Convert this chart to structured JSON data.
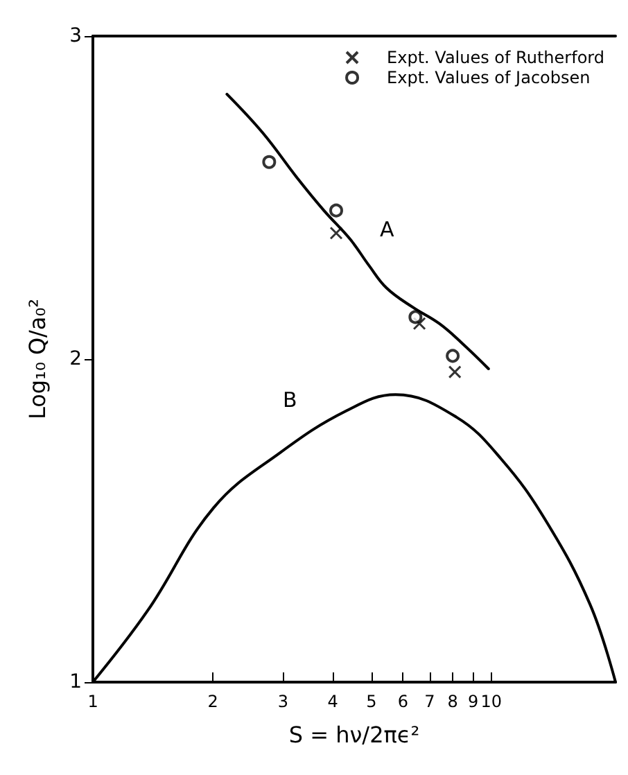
{
  "chart_data": {
    "type": "line",
    "xlabel": "S = hν/2πϵ²",
    "ylabel": "Log₁₀ Q/a₀²",
    "log": "x",
    "xlim": [
      1,
      20.5
    ],
    "ylim": [
      1,
      3
    ],
    "xticks": [
      1,
      2,
      3,
      4,
      5,
      6,
      7,
      8,
      9,
      10
    ],
    "yticks": [
      1,
      2,
      3
    ],
    "grid": false,
    "legend": "top right",
    "line_style": "solid",
    "series": [
      {
        "color": "#000000",
        "marker": "none",
        "x": [
          2.17,
          2.67,
          3.26,
          3.8,
          4.43,
          4.93,
          5.46,
          6.36,
          7.4,
          8.43,
          9.84
        ],
        "values": [
          2.82,
          2.7,
          2.56,
          2.46,
          2.37,
          2.29,
          2.22,
          2.16,
          2.11,
          2.05,
          1.97
        ]
      },
      {
        "color": "#000000",
        "marker": "none",
        "x": [
          1,
          1.37,
          2.01,
          2.95,
          4.33,
          5.75,
          8.18,
          10.6,
          13.7,
          17.7,
          20.5
        ],
        "values": [
          1,
          1.22,
          1.54,
          1.71,
          1.84,
          1.89,
          1.82,
          1.69,
          1.5,
          1.24,
          1
        ]
      },
      {
        "type": "scatter",
        "name": "Expt. Values of Rutherford",
        "color": "#000000",
        "marker": "cross",
        "x": [
          4.08,
          6.6,
          8.1
        ],
        "values": [
          2.39,
          2.11,
          1.96
        ]
      },
      {
        "type": "scatter",
        "name": "Expt. Values of Jacobsen",
        "color": "#000000",
        "marker": "circle",
        "x": [
          2.77,
          4.08,
          6.45,
          8.0
        ],
        "values": [
          2.61,
          2.46,
          2.13,
          2.01
        ]
      }
    ],
    "annotations": [
      "A",
      "B"
    ]
  }
}
